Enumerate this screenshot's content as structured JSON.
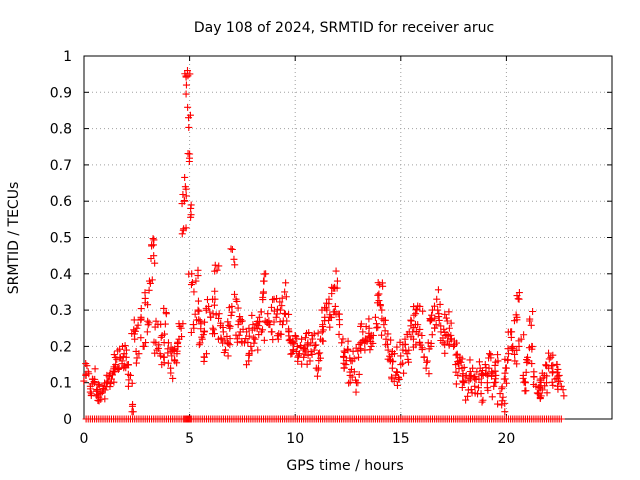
{
  "chart_data": {
    "type": "scatter",
    "title": "Day 108 of 2024, SRMTID for receiver aruc",
    "xlabel": "GPS time / hours",
    "ylabel": "SRMTID / TECUs",
    "xlim": [
      0,
      25
    ],
    "ylim": [
      0,
      1
    ],
    "xticks": [
      "0",
      "5",
      "10",
      "15",
      "20"
    ],
    "yticks": [
      "0",
      "0.1",
      "0.2",
      "0.3",
      "0.4",
      "0.5",
      "0.6",
      "0.7",
      "0.8",
      "0.9",
      "1"
    ],
    "grid": true,
    "marker": "+",
    "color": "#ff0000",
    "series": [
      {
        "name": "SRMTID",
        "points": [
          [
            0.1,
            0.12
          ],
          [
            0.2,
            0.13
          ],
          [
            0.3,
            0.09
          ],
          [
            0.4,
            0.11
          ],
          [
            0.5,
            0.1
          ],
          [
            0.6,
            0.08
          ],
          [
            0.7,
            0.06
          ],
          [
            0.8,
            0.07
          ],
          [
            0.9,
            0.09
          ],
          [
            1.0,
            0.08
          ],
          [
            1.1,
            0.1
          ],
          [
            1.2,
            0.12
          ],
          [
            1.3,
            0.11
          ],
          [
            1.4,
            0.13
          ],
          [
            1.5,
            0.15
          ],
          [
            1.6,
            0.14
          ],
          [
            1.7,
            0.17
          ],
          [
            1.8,
            0.16
          ],
          [
            1.9,
            0.18
          ],
          [
            2.0,
            0.17
          ],
          [
            2.1,
            0.15
          ],
          [
            2.2,
            0.12
          ],
          [
            2.3,
            0.04
          ],
          [
            2.4,
            0.22
          ],
          [
            2.5,
            0.25
          ],
          [
            2.6,
            0.18
          ],
          [
            2.7,
            0.28
          ],
          [
            2.8,
            0.2
          ],
          [
            2.9,
            0.32
          ],
          [
            3.0,
            0.24
          ],
          [
            3.1,
            0.38
          ],
          [
            3.2,
            0.48
          ],
          [
            3.3,
            0.45
          ],
          [
            3.4,
            0.21
          ],
          [
            3.5,
            0.26
          ],
          [
            3.6,
            0.18
          ],
          [
            3.7,
            0.23
          ],
          [
            3.8,
            0.17
          ],
          [
            3.9,
            0.29
          ],
          [
            4.0,
            0.21
          ],
          [
            4.1,
            0.14
          ],
          [
            4.2,
            0.19
          ],
          [
            4.3,
            0.16
          ],
          [
            4.4,
            0.18
          ],
          [
            4.5,
            0.22
          ],
          [
            4.6,
            0.25
          ],
          [
            4.7,
            0.52
          ],
          [
            4.75,
            0.6
          ],
          [
            4.8,
            0.64
          ],
          [
            4.85,
            0.92
          ],
          [
            4.9,
            0.96
          ],
          [
            4.95,
            0.83
          ],
          [
            5.0,
            0.73
          ],
          [
            5.05,
            0.58
          ],
          [
            5.1,
            0.4
          ],
          [
            5.2,
            0.25
          ],
          [
            5.3,
            0.38
          ],
          [
            5.4,
            0.3
          ],
          [
            5.5,
            0.27
          ],
          [
            5.6,
            0.22
          ],
          [
            5.7,
            0.24
          ],
          [
            5.8,
            0.18
          ],
          [
            5.9,
            0.31
          ],
          [
            6.0,
            0.28
          ],
          [
            6.1,
            0.25
          ],
          [
            6.2,
            0.33
          ],
          [
            6.3,
            0.41
          ],
          [
            6.4,
            0.29
          ],
          [
            6.5,
            0.22
          ],
          [
            6.6,
            0.24
          ],
          [
            6.7,
            0.19
          ],
          [
            6.8,
            0.21
          ],
          [
            6.9,
            0.25
          ],
          [
            7.0,
            0.31
          ],
          [
            7.1,
            0.44
          ],
          [
            7.2,
            0.33
          ],
          [
            7.3,
            0.26
          ],
          [
            7.4,
            0.24
          ],
          [
            7.5,
            0.27
          ],
          [
            7.6,
            0.21
          ],
          [
            7.7,
            0.24
          ],
          [
            7.8,
            0.16
          ],
          [
            7.9,
            0.2
          ],
          [
            8.0,
            0.26
          ],
          [
            8.1,
            0.22
          ],
          [
            8.2,
            0.25
          ],
          [
            8.3,
            0.28
          ],
          [
            8.4,
            0.24
          ],
          [
            8.5,
            0.35
          ],
          [
            8.6,
            0.4
          ],
          [
            8.7,
            0.29
          ],
          [
            8.8,
            0.26
          ],
          [
            8.9,
            0.24
          ],
          [
            9.0,
            0.33
          ],
          [
            9.1,
            0.28
          ],
          [
            9.2,
            0.22
          ],
          [
            9.3,
            0.3
          ],
          [
            9.4,
            0.26
          ],
          [
            9.5,
            0.35
          ],
          [
            9.6,
            0.27
          ],
          [
            9.7,
            0.24
          ],
          [
            9.8,
            0.21
          ],
          [
            9.9,
            0.19
          ],
          [
            10.0,
            0.23
          ],
          [
            10.1,
            0.2
          ],
          [
            10.2,
            0.18
          ],
          [
            10.3,
            0.22
          ],
          [
            10.4,
            0.17
          ],
          [
            10.5,
            0.19
          ],
          [
            10.6,
            0.21
          ],
          [
            10.7,
            0.16
          ],
          [
            10.8,
            0.23
          ],
          [
            10.9,
            0.19
          ],
          [
            11.0,
            0.14
          ],
          [
            11.1,
            0.18
          ],
          [
            11.2,
            0.22
          ],
          [
            11.3,
            0.26
          ],
          [
            11.4,
            0.28
          ],
          [
            11.5,
            0.3
          ],
          [
            11.6,
            0.33
          ],
          [
            11.7,
            0.28
          ],
          [
            11.8,
            0.36
          ],
          [
            11.9,
            0.31
          ],
          [
            12.0,
            0.38
          ],
          [
            12.1,
            0.26
          ],
          [
            12.2,
            0.21
          ],
          [
            12.3,
            0.17
          ],
          [
            12.4,
            0.15
          ],
          [
            12.5,
            0.19
          ],
          [
            12.6,
            0.12
          ],
          [
            12.7,
            0.16
          ],
          [
            12.8,
            0.13
          ],
          [
            12.9,
            0.1
          ],
          [
            13.0,
            0.17
          ],
          [
            13.1,
            0.21
          ],
          [
            13.2,
            0.24
          ],
          [
            13.3,
            0.19
          ],
          [
            13.4,
            0.22
          ],
          [
            13.5,
            0.25
          ],
          [
            13.6,
            0.2
          ],
          [
            13.7,
            0.23
          ],
          [
            13.8,
            0.28
          ],
          [
            13.9,
            0.32
          ],
          [
            14.0,
            0.37
          ],
          [
            14.1,
            0.3
          ],
          [
            14.2,
            0.26
          ],
          [
            14.3,
            0.22
          ],
          [
            14.4,
            0.19
          ],
          [
            14.5,
            0.16
          ],
          [
            14.6,
            0.14
          ],
          [
            14.7,
            0.18
          ],
          [
            14.8,
            0.13
          ],
          [
            14.9,
            0.11
          ],
          [
            15.0,
            0.15
          ],
          [
            15.1,
            0.19
          ],
          [
            15.2,
            0.22
          ],
          [
            15.3,
            0.18
          ],
          [
            15.4,
            0.24
          ],
          [
            15.5,
            0.27
          ],
          [
            15.6,
            0.22
          ],
          [
            15.7,
            0.29
          ],
          [
            15.8,
            0.26
          ],
          [
            15.9,
            0.31
          ],
          [
            16.0,
            0.23
          ],
          [
            16.1,
            0.17
          ],
          [
            16.2,
            0.14
          ],
          [
            16.3,
            0.21
          ],
          [
            16.4,
            0.27
          ],
          [
            16.5,
            0.3
          ],
          [
            16.6,
            0.25
          ],
          [
            16.7,
            0.33
          ],
          [
            16.8,
            0.29
          ],
          [
            16.9,
            0.24
          ],
          [
            17.0,
            0.21
          ],
          [
            17.1,
            0.23
          ],
          [
            17.2,
            0.27
          ],
          [
            17.3,
            0.25
          ],
          [
            17.4,
            0.22
          ],
          [
            17.5,
            0.2
          ],
          [
            17.6,
            0.15
          ],
          [
            17.7,
            0.12
          ],
          [
            17.8,
            0.17
          ],
          [
            17.9,
            0.14
          ],
          [
            18.0,
            0.1
          ],
          [
            18.1,
            0.12
          ],
          [
            18.2,
            0.08
          ],
          [
            18.3,
            0.11
          ],
          [
            18.4,
            0.14
          ],
          [
            18.5,
            0.09
          ],
          [
            18.6,
            0.13
          ],
          [
            18.7,
            0.11
          ],
          [
            18.8,
            0.07
          ],
          [
            18.9,
            0.12
          ],
          [
            19.0,
            0.15
          ],
          [
            19.1,
            0.1
          ],
          [
            19.2,
            0.18
          ],
          [
            19.3,
            0.13
          ],
          [
            19.4,
            0.09
          ],
          [
            19.5,
            0.12
          ],
          [
            19.6,
            0.16
          ],
          [
            19.7,
            0.07
          ],
          [
            19.8,
            0.05
          ],
          [
            19.9,
            0.11
          ],
          [
            20.0,
            0.14
          ],
          [
            20.1,
            0.18
          ],
          [
            20.2,
            0.24
          ],
          [
            20.3,
            0.2
          ],
          [
            20.4,
            0.16
          ],
          [
            20.5,
            0.28
          ],
          [
            20.6,
            0.33
          ],
          [
            20.7,
            0.22
          ],
          [
            20.8,
            0.12
          ],
          [
            20.9,
            0.1
          ],
          [
            21.0,
            0.17
          ],
          [
            21.1,
            0.27
          ],
          [
            21.2,
            0.2
          ],
          [
            21.3,
            0.13
          ],
          [
            21.4,
            0.09
          ],
          [
            21.5,
            0.07
          ],
          [
            21.6,
            0.11
          ],
          [
            21.7,
            0.08
          ],
          [
            21.8,
            0.12
          ],
          [
            21.9,
            0.1
          ],
          [
            22.0,
            0.14
          ],
          [
            22.1,
            0.17
          ],
          [
            22.2,
            0.13
          ],
          [
            22.3,
            0.11
          ],
          [
            22.4,
            0.15
          ],
          [
            22.5,
            0.12
          ],
          [
            22.6,
            0.09
          ]
        ]
      }
    ]
  }
}
